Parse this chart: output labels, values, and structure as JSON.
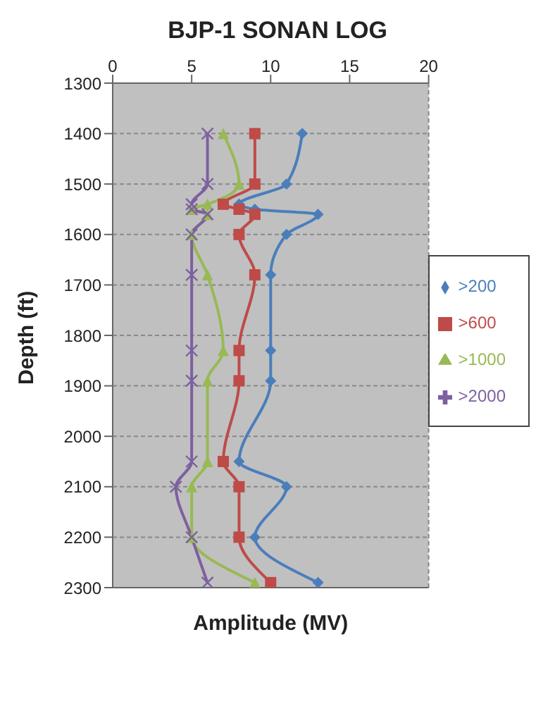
{
  "chart_data": {
    "type": "line",
    "title": "BJP-1 SONAN LOG",
    "xlabel": "Amplitude (MV)",
    "ylabel": "Depth (ft)",
    "xlim": [
      0,
      20
    ],
    "xticks": [
      0,
      5,
      10,
      15,
      20
    ],
    "ylim": [
      2300,
      1300
    ],
    "yticks": [
      1300,
      1400,
      1500,
      1600,
      1700,
      1800,
      1900,
      2000,
      2100,
      2200,
      2300
    ],
    "grid": true,
    "legend": "right",
    "line_style": "solid",
    "series": [
      {
        "name": ">200",
        "color": "#4a7ebb",
        "marker": "diamond",
        "x": [
          12,
          11,
          8,
          9,
          13,
          11,
          10,
          10,
          10,
          8,
          11,
          9,
          13
        ],
        "values": [
          1400,
          1500,
          1540,
          1550,
          1560,
          1600,
          1680,
          1830,
          1890,
          2050,
          2100,
          2200,
          2290
        ]
      },
      {
        "name": ">600",
        "color": "#be4b48",
        "marker": "square",
        "x": [
          9,
          9,
          7,
          8,
          9,
          8,
          9,
          8,
          8,
          7,
          8,
          8,
          10
        ],
        "values": [
          1400,
          1500,
          1540,
          1550,
          1560,
          1600,
          1680,
          1830,
          1890,
          2050,
          2100,
          2200,
          2290
        ]
      },
      {
        "name": ">1000",
        "color": "#98b954",
        "marker": "triangle",
        "x": [
          7,
          8,
          6,
          5,
          6,
          5,
          6,
          7,
          6,
          6,
          5,
          5,
          9
        ],
        "values": [
          1400,
          1500,
          1540,
          1550,
          1560,
          1600,
          1680,
          1830,
          1890,
          2050,
          2100,
          2200,
          2290
        ]
      },
      {
        "name": ">2000",
        "color": "#7d60a0",
        "marker": "cross",
        "x": [
          6,
          6,
          5,
          5,
          6,
          5,
          5,
          5,
          5,
          5,
          4,
          5,
          6
        ],
        "values": [
          1400,
          1500,
          1540,
          1550,
          1560,
          1600,
          1680,
          1830,
          1890,
          2050,
          2100,
          2200,
          2290
        ]
      }
    ]
  }
}
